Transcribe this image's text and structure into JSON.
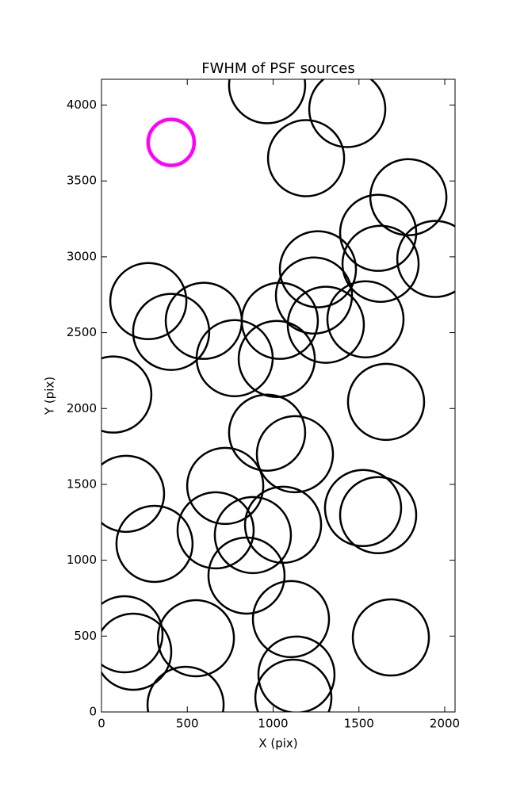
{
  "chart_data": {
    "type": "scatter",
    "title": "FWHM of PSF sources",
    "x_label": "X (pix)",
    "y_label": "Y (pix)",
    "xlim": [
      0,
      2060
    ],
    "ylim": [
      0,
      4170
    ],
    "xticks": [
      0,
      500,
      1000,
      1500,
      2000
    ],
    "yticks": [
      0,
      500,
      1000,
      1500,
      2000,
      2500,
      3000,
      3500,
      4000
    ],
    "series": [
      {
        "color": "#000000",
        "x": [
          965,
          1432,
          1192,
          1788,
          1612,
          1945,
          1626,
          1261,
          1238,
          273,
          596,
          406,
          1039,
          1307,
          1538,
          776,
          1021,
          69,
          1658,
          965,
          1127,
          143,
          721,
          1524,
          1612,
          309,
          665,
          882,
          1058,
          845,
          1104,
          1686,
          550,
          134,
          185,
          1136,
          1118,
          490
        ],
        "values": [
          4131,
          3974,
          3650,
          3393,
          3158,
          2986,
          2954,
          2918,
          2745,
          2708,
          2578,
          2505,
          2578,
          2552,
          2588,
          2332,
          2327,
          2092,
          2044,
          1841,
          1699,
          1438,
          1490,
          1344,
          1297,
          1108,
          1197,
          1166,
          1234,
          899,
          612,
          491,
          486,
          512,
          397,
          246,
          94,
          47
        ]
      },
      {
        "color": "#ff00ff",
        "x": [
          406
        ],
        "values": [
          3754
        ]
      }
    ]
  }
}
